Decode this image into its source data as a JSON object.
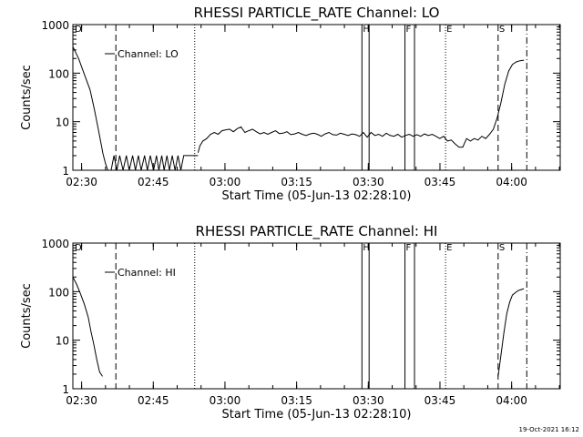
{
  "chart_data": [
    {
      "type": "line",
      "title": "RHESSI PARTICLE_RATE Channel: LO",
      "xlabel": "Start Time (05-Jun-13 02:28:10)",
      "ylabel": "Counts/sec",
      "yscale": "log",
      "ylim": [
        1,
        1000
      ],
      "xlim_minutes": [
        0,
        102
      ],
      "x_ticks": [
        "02:30",
        "02:45",
        "03:00",
        "03:15",
        "03:30",
        "03:45",
        "04:00"
      ],
      "x_tick_minutes": [
        1.83,
        16.83,
        31.83,
        46.83,
        61.83,
        76.83,
        91.83
      ],
      "y_ticks": [
        "1",
        "10",
        "100",
        "1000"
      ],
      "y_tick_values": [
        1,
        10,
        100,
        1000
      ],
      "legend": "Channel: LO",
      "flags": [
        {
          "label": "D",
          "minute": 0.0
        },
        {
          "label": "",
          "minute": 9.0
        },
        {
          "label": "",
          "minute": 25.5
        },
        {
          "label": "H",
          "minute": 60.5
        },
        {
          "label": "",
          "minute": 62.0
        },
        {
          "label": "F",
          "minute": 69.5
        },
        {
          "label": "",
          "minute": 71.5
        },
        {
          "label": "E",
          "minute": 78.0
        },
        {
          "label": "S",
          "minute": 89.0
        },
        {
          "label": "",
          "minute": 95.0
        }
      ],
      "series": [
        {
          "name": "Channel: LO",
          "segments": [
            {
              "minutes": [
                0.0,
                1.2,
                2.3,
                3.6,
                4.5,
                5.2,
                5.8,
                6.3,
                6.8,
                7.3,
                8.0,
                8.6,
                9.2,
                9.8,
                10.5,
                11.2,
                11.8,
                12.5,
                13.1,
                13.7,
                14.3,
                15.0,
                15.6,
                16.2,
                16.9,
                17.5,
                18.0,
                18.6,
                19.1,
                19.7,
                20.2,
                20.8,
                21.4,
                22.0,
                22.6,
                23.2,
                23.8,
                24.4,
                25.0,
                25.6,
                26.2
              ],
              "values": [
                350,
                200,
                100,
                45,
                18,
                8,
                4,
                2.2,
                1.4,
                1,
                1,
                2,
                1,
                2,
                1,
                2,
                1,
                2,
                1,
                2,
                1,
                2,
                1,
                2,
                1,
                2,
                1,
                2,
                1,
                2,
                1,
                2,
                1,
                2,
                1,
                2,
                2,
                2,
                2,
                2,
                2
              ]
            },
            {
              "minutes": [
                26.2,
                26.6,
                27.2,
                28.0,
                28.8,
                29.6,
                30.4,
                31.2,
                32.0,
                32.8,
                33.6,
                34.4,
                35.2,
                36.0,
                36.8,
                37.6,
                38.4,
                39.2,
                40.0,
                40.8,
                41.6,
                42.4,
                43.2,
                44.0,
                44.8,
                45.6,
                46.4,
                47.2,
                48.0,
                48.8,
                49.6,
                50.4,
                51.2,
                52.0,
                52.8,
                53.6,
                54.4,
                55.2,
                56.0,
                56.8,
                57.6,
                58.4,
                59.2,
                60.0,
                60.8,
                61.6,
                62.4,
                63.2,
                64.0,
                64.8,
                65.6,
                66.4,
                67.2,
                68.0,
                68.8,
                69.6,
                70.4,
                71.2,
                72.0,
                72.8,
                73.6,
                74.4,
                75.2,
                76.0,
                76.8,
                77.6,
                78.4,
                79.2,
                80.0,
                80.8,
                81.6,
                82.4,
                83.2,
                84.0,
                84.8,
                85.6,
                86.4,
                87.2,
                88.0,
                88.8,
                89.6,
                90.4,
                91.2,
                92.0,
                92.8,
                93.6,
                94.4
              ],
              "values": [
                2.3,
                3.2,
                4.0,
                4.5,
                5.5,
                6.0,
                5.5,
                6.5,
                6.8,
                7.0,
                6.2,
                7.2,
                7.8,
                6.0,
                6.5,
                7.0,
                6.2,
                5.6,
                6.0,
                5.5,
                6.0,
                6.5,
                5.7,
                5.8,
                6.2,
                5.4,
                5.6,
                6.0,
                5.5,
                5.2,
                5.6,
                5.8,
                5.5,
                5.0,
                5.6,
                6.0,
                5.4,
                5.3,
                5.8,
                5.5,
                5.2,
                5.6,
                5.4,
                5.0,
                6.0,
                4.8,
                6.0,
                5.2,
                5.5,
                5.0,
                5.8,
                5.2,
                5.0,
                5.5,
                4.8,
                5.2,
                5.5,
                5.0,
                5.4,
                5.0,
                5.6,
                5.2,
                5.5,
                5.0,
                4.5,
                5.0,
                4.0,
                4.2,
                3.5,
                3.0,
                3.0,
                4.5,
                4.0,
                4.5,
                4.2,
                5.0,
                4.5,
                5.5,
                7.0,
                12,
                25,
                60,
                110,
                150,
                170,
                180,
                185
              ]
            }
          ]
        }
      ]
    },
    {
      "type": "line",
      "title": "RHESSI PARTICLE_RATE Channel: HI",
      "xlabel": "Start Time (05-Jun-13 02:28:10)",
      "ylabel": "Counts/sec",
      "yscale": "log",
      "ylim": [
        1,
        1000
      ],
      "xlim_minutes": [
        0,
        102
      ],
      "x_ticks": [
        "02:30",
        "02:45",
        "03:00",
        "03:15",
        "03:30",
        "03:45",
        "04:00"
      ],
      "x_tick_minutes": [
        1.83,
        16.83,
        31.83,
        46.83,
        61.83,
        76.83,
        91.83
      ],
      "y_ticks": [
        "1",
        "10",
        "100",
        "1000"
      ],
      "y_tick_values": [
        1,
        10,
        100,
        1000
      ],
      "legend": "Channel: HI",
      "flags": [
        {
          "label": "D",
          "minute": 0.0
        },
        {
          "label": "",
          "minute": 9.0
        },
        {
          "label": "",
          "minute": 25.5
        },
        {
          "label": "H",
          "minute": 60.5
        },
        {
          "label": "",
          "minute": 62.0
        },
        {
          "label": "F",
          "minute": 69.5
        },
        {
          "label": "",
          "minute": 71.5
        },
        {
          "label": "E",
          "minute": 78.0
        },
        {
          "label": "S",
          "minute": 89.0
        },
        {
          "label": "",
          "minute": 95.0
        }
      ],
      "series": [
        {
          "name": "Channel: HI",
          "segments": [
            {
              "minutes": [
                0.0,
                0.8,
                1.6,
                2.4,
                3.2,
                3.8,
                4.4,
                5.0,
                5.6,
                6.2
              ],
              "values": [
                200,
                140,
                90,
                55,
                30,
                15,
                8,
                4,
                2.2,
                1.8
              ]
            },
            {
              "minutes": [
                89.0,
                89.6,
                90.2,
                90.8,
                91.4,
                92.0,
                92.6,
                93.2,
                93.8,
                94.4
              ],
              "values": [
                1.8,
                5,
                14,
                35,
                60,
                85,
                95,
                105,
                110,
                115
              ]
            }
          ]
        }
      ]
    }
  ],
  "footer": {
    "timestamp": "19-Oct-2021 16:12"
  }
}
